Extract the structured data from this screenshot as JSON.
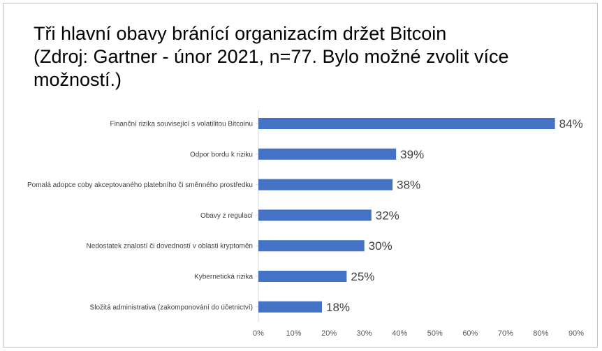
{
  "chart_data": {
    "type": "bar",
    "orientation": "horizontal",
    "title_lines": [
      "Tři hlavní obavy bránící organizacím držet Bitcoin",
      "(Zdroj: Gartner - únor 2021, n=77. Bylo možné zvolit více",
      "možností.)"
    ],
    "categories": [
      "Finanční rizika související s volatilitou Bitcoinu",
      "Odpor bordu k riziku",
      "Pomalá adopce coby akceptovaného platebního či směnného prostředku",
      "Obavy z regulací",
      "Nedostatek znalostí či dovedností v oblasti kryptoměn",
      "Kybernetická rizika",
      "Složitá administrativa (zakomponování do účetnictví)"
    ],
    "values": [
      84,
      39,
      38,
      32,
      30,
      25,
      18
    ],
    "value_labels": [
      "84%",
      "39%",
      "38%",
      "32%",
      "30%",
      "25%",
      "18%"
    ],
    "xlim": [
      0,
      90
    ],
    "xticks": [
      "0%",
      "10%",
      "20%",
      "30%",
      "40%",
      "50%",
      "60%",
      "70%",
      "80%",
      "90%"
    ],
    "bar_color": "#4472c4",
    "grid": false,
    "legend": "none"
  }
}
